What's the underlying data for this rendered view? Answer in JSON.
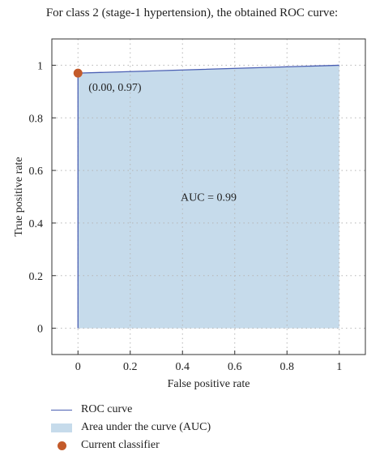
{
  "header": {
    "title": "For class 2 (stage-1 hypertension), the obtained ROC curve:"
  },
  "chart_data": {
    "type": "line",
    "title": "For class 2 (stage-1 hypertension), the obtained ROC curve:",
    "xlabel": "False positive rate",
    "ylabel": "True positive rate",
    "xlim": [
      -0.1,
      1.1
    ],
    "ylim": [
      -0.1,
      1.1
    ],
    "xticks": [
      0,
      0.2,
      0.4,
      0.6,
      0.8,
      1
    ],
    "yticks": [
      0,
      0.2,
      0.4,
      0.6,
      0.8,
      1
    ],
    "xtick_labels": [
      "0",
      "0.2",
      "0.4",
      "0.6",
      "0.8",
      "1"
    ],
    "ytick_labels": [
      "0",
      "0.2",
      "0.4",
      "0.6",
      "0.8",
      "1"
    ],
    "grid": "dotted",
    "series": [
      {
        "name": "ROC curve",
        "x": [
          0,
          0,
          1
        ],
        "y": [
          0,
          0.97,
          1.0
        ],
        "color": "#4a5fb3"
      }
    ],
    "area": {
      "name": "Area under the curve (AUC)",
      "color": "#c6dbeb"
    },
    "point": {
      "name": "Current classifier",
      "x": 0.0,
      "y": 0.97,
      "label": "(0.00, 0.97)",
      "color": "#c35a2a"
    },
    "annotations": [
      {
        "text": "AUC = 0.99",
        "x": 0.5,
        "y": 0.5
      }
    ]
  },
  "legend": {
    "items": [
      {
        "label": "ROC curve",
        "swatch": "line"
      },
      {
        "label": "Area under the curve (AUC)",
        "swatch": "area"
      },
      {
        "label": "Current classifier",
        "swatch": "dot"
      }
    ]
  }
}
